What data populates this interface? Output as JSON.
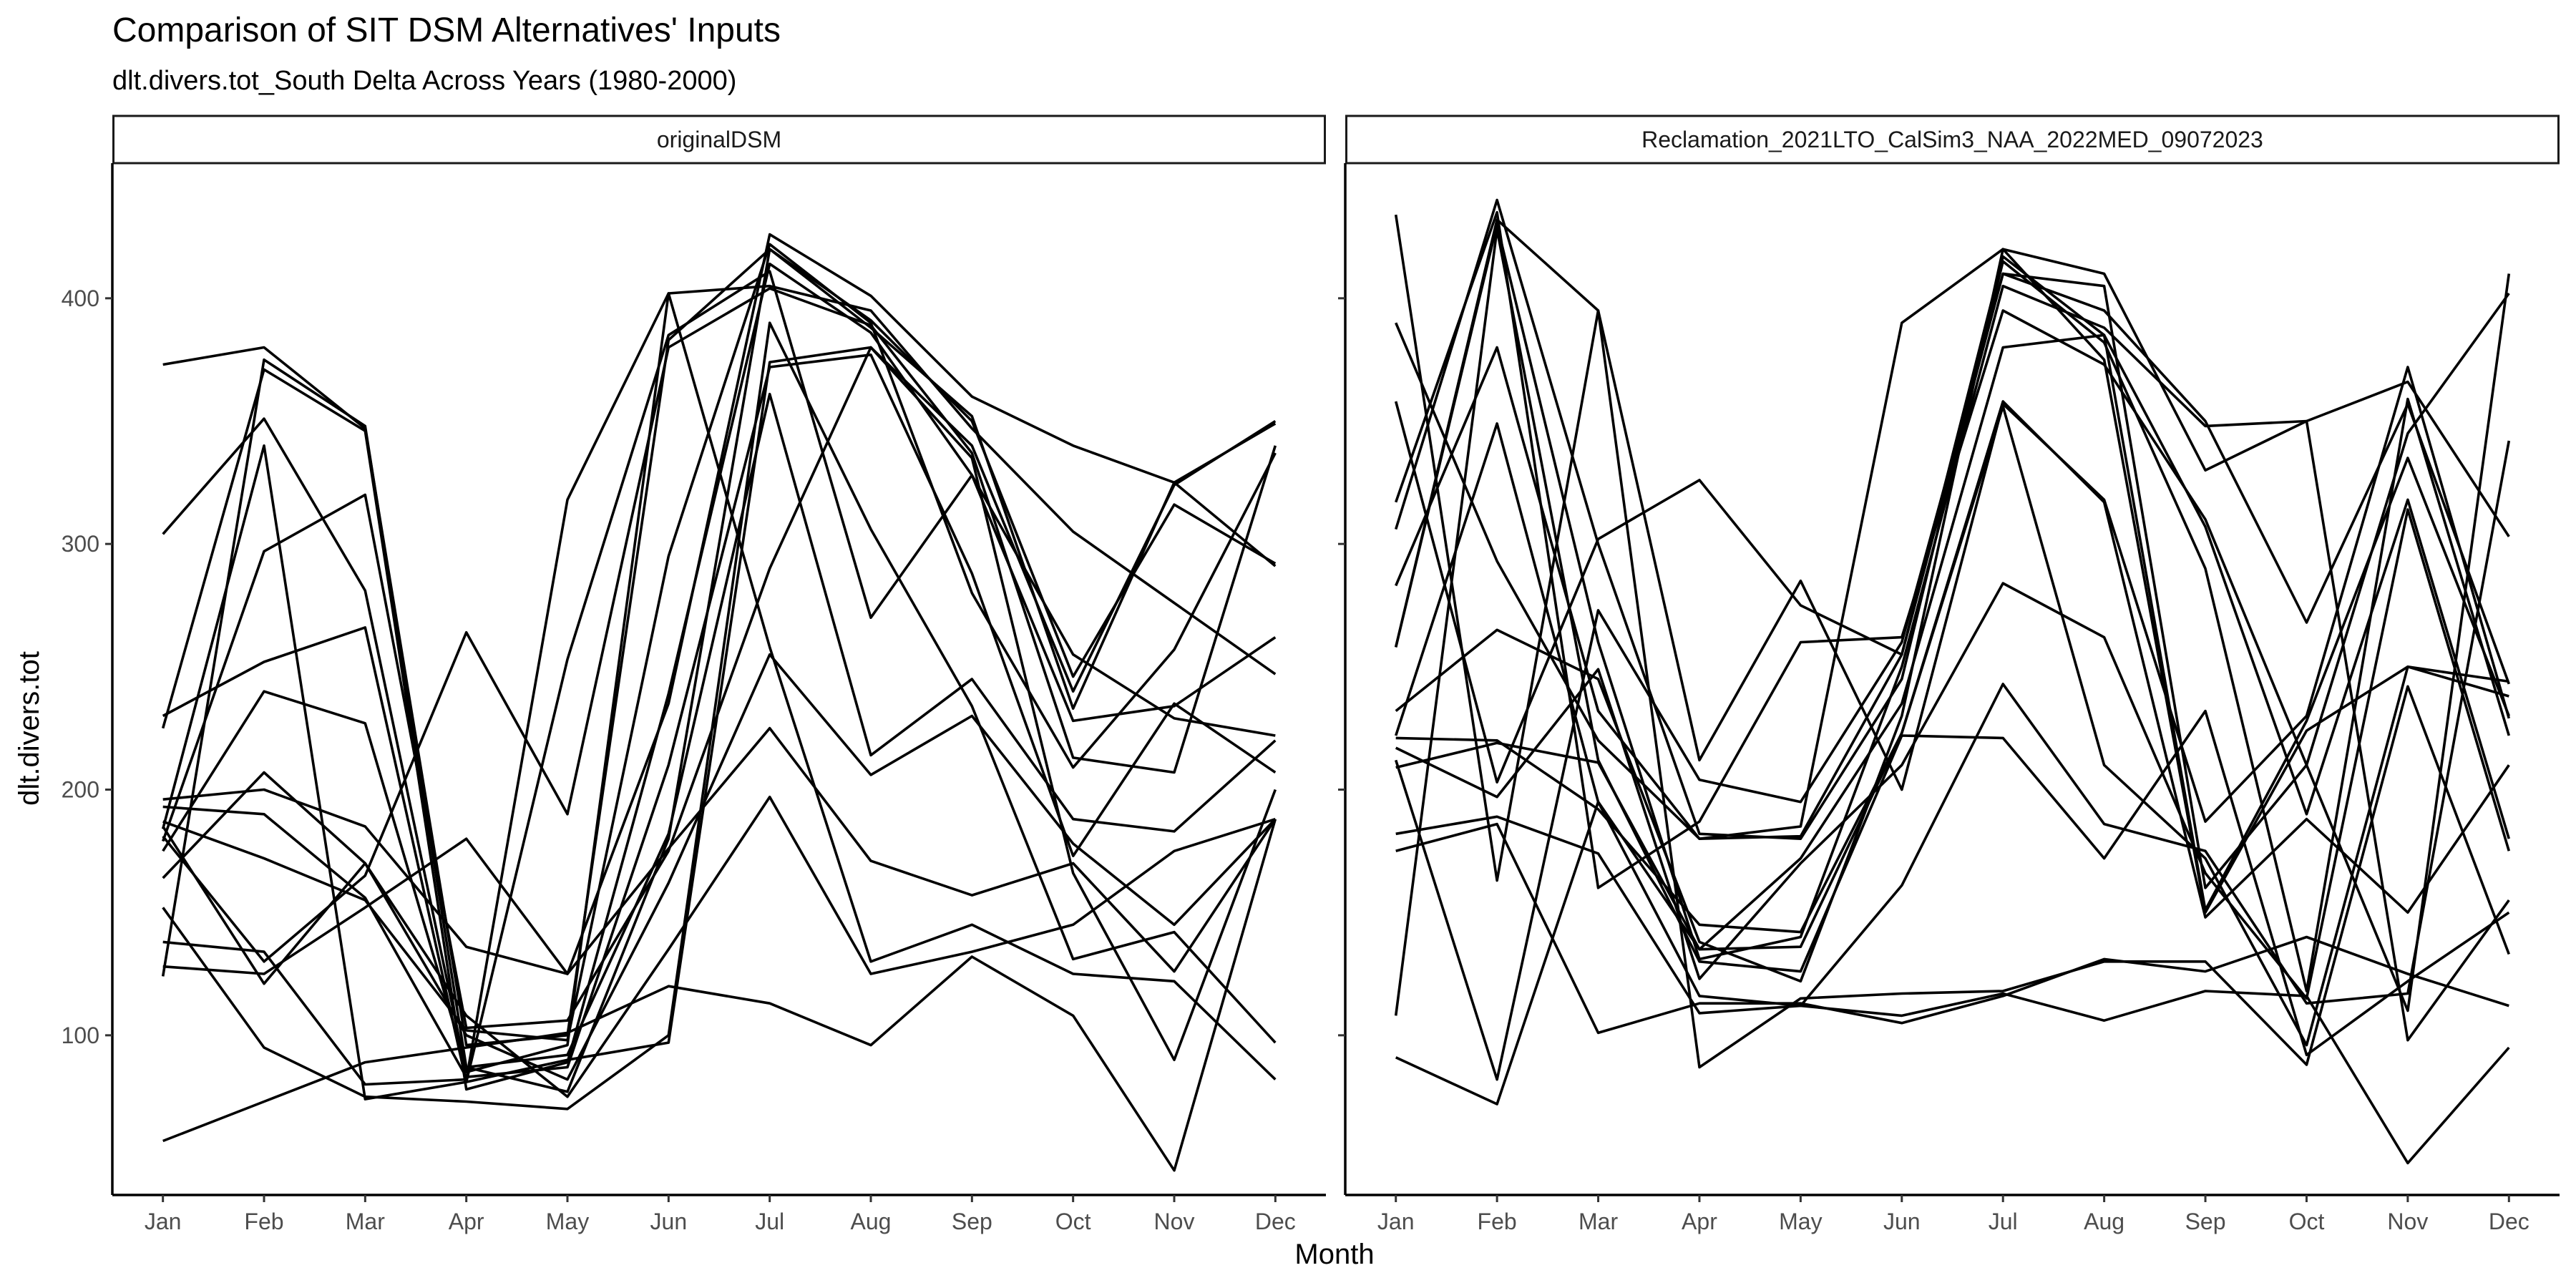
{
  "chart_data": {
    "type": "line",
    "title": "Comparison of SIT DSM Alternatives' Inputs",
    "subtitle": "dlt.divers.tot_South Delta Across Years (1980-2000)",
    "xlabel": "Month",
    "ylabel": "dlt.divers.tot",
    "categories": [
      "Jan",
      "Feb",
      "Mar",
      "Apr",
      "May",
      "Jun",
      "Jul",
      "Aug",
      "Sep",
      "Oct",
      "Nov",
      "Dec"
    ],
    "ylim": [
      35,
      455
    ],
    "yticks": [
      100,
      200,
      300,
      400
    ],
    "grid": false,
    "panels": [
      {
        "strip": "originalDSM",
        "series": [
          {
            "values": [
              373,
              380,
              347,
              96,
              100,
              383,
              420,
              388,
              352,
              233,
              325,
              349
            ]
          },
          {
            "values": [
              304,
              351,
              281,
              85,
              96,
              402,
              405,
              395,
              347,
              305,
              276,
              247
            ]
          },
          {
            "values": [
              230,
              252,
              266,
              81,
              90,
              97,
              374,
              380,
              340,
              240,
              324,
              350
            ]
          },
          {
            "values": [
              225,
              371,
              346,
              78,
              89,
              239,
              414,
              386,
              328,
              255,
              229,
              222
            ]
          },
          {
            "values": [
              196,
              200,
              185,
              136,
              125,
              235,
              426,
              401,
              360,
              340,
              325,
              291
            ]
          },
          {
            "values": [
              187,
              172,
              155,
              102,
              98,
              295,
              422,
              390,
              280,
              209,
              257,
              337
            ]
          },
          {
            "values": [
              184,
              340,
              74,
              81,
              253,
              385,
              411,
              270,
              328,
              228,
              234,
              262
            ]
          },
          {
            "values": [
              193,
              190,
              156,
              83,
              87,
              210,
              372,
              377,
              288,
              173,
              235,
              207
            ]
          },
          {
            "values": [
              181,
              130,
              165,
              264,
              190,
              380,
              404,
              389,
              337,
              213,
              207,
              340
            ]
          },
          {
            "values": [
              179,
              297,
              320,
              103,
              106,
              175,
              290,
              380,
              335,
              166,
              90,
              200
            ]
          },
          {
            "values": [
              175,
              240,
              227,
              87,
              92,
              182,
              361,
              214,
              245,
              188,
              183,
              220
            ]
          },
          {
            "values": [
              164,
              207,
              170,
              100,
              82,
              162,
              255,
              206,
              230,
              178,
              145,
              188
            ]
          },
          {
            "values": [
              152,
              95,
              75,
              73,
              70,
              100,
              390,
              306,
              234,
              131,
              142,
              97
            ]
          },
          {
            "values": [
              138,
              134,
              80,
              82,
              318,
              402,
              258,
              130,
              145,
              125,
              122,
              82
            ]
          },
          {
            "values": [
              128,
              125,
              152,
              180,
              125,
              176,
              225,
              171,
              157,
              170,
              126,
              188
            ]
          },
          {
            "values": [
              185,
              121,
              170,
              108,
              75,
              135,
              197,
              125,
              134,
              145,
              175,
              188
            ]
          },
          {
            "values": [
              57,
              73,
              89,
              95,
              101,
              120,
              113,
              96,
              132,
              108,
              45,
              188
            ]
          },
          {
            "values": [
              124,
              375,
              348,
              87,
              77,
              180,
              420,
              391,
              350,
              246,
              316,
              292
            ]
          }
        ]
      },
      {
        "strip": "Reclamation_2021LTO_CalSim3_NAA_2022MED_09072023",
        "series": [
          {
            "values": [
              434,
              163,
              395,
              212,
              285,
              200,
              357,
              318,
              187,
              230,
              372,
              229
            ]
          },
          {
            "values": [
              390,
              293,
              220,
              180,
              185,
              390,
              420,
              410,
              330,
              350,
              366,
              303
            ]
          },
          {
            "values": [
              358,
              203,
              302,
              326,
              275,
              255,
              410,
              395,
              350,
              268,
              357,
              243
            ]
          },
          {
            "values": [
              317,
              435,
              160,
              187,
              260,
              262,
              395,
              373,
              310,
              210,
              345,
              402
            ]
          },
          {
            "values": [
              306,
              440,
              300,
              182,
              180,
              245,
              415,
              382,
              290,
              118,
              359,
              222
            ]
          },
          {
            "values": [
              283,
              380,
              232,
              180,
              181,
              255,
              417,
              385,
              307,
              190,
              318,
              180
            ]
          },
          {
            "values": [
              258,
              430,
              260,
              131,
              140,
              250,
              405,
              388,
              348,
              350,
              98,
              155
            ]
          },
          {
            "values": [
              232,
              265,
              245,
              138,
              122,
              230,
              420,
              375,
              150,
              224,
              250,
              238
            ]
          },
          {
            "values": [
              222,
              349,
              195,
              135,
              172,
              235,
              380,
              385,
              151,
              228,
              335,
              230
            ]
          },
          {
            "values": [
              221,
              220,
              192,
              145,
              142,
              223,
              358,
              317,
              148,
              188,
              150,
              210
            ]
          },
          {
            "values": [
              217,
              197,
              249,
              123,
              170,
              210,
              284,
              262,
              166,
              115,
              314,
              175
            ]
          },
          {
            "values": [
              209,
              219,
              211,
              135,
              136,
              223,
              356,
              210,
              172,
              96,
              250,
              244
            ]
          },
          {
            "values": [
              182,
              189,
              174,
              109,
              112,
              161,
              243,
              186,
              175,
              113,
              117,
              342
            ]
          },
          {
            "values": [
              108,
              428,
              212,
              130,
              126,
              222,
              221,
              172,
              232,
              92,
              122,
              150
            ]
          },
          {
            "values": [
              175,
              186,
              101,
              113,
              113,
              105,
              116,
              131,
              126,
              140,
              125,
              112
            ]
          },
          {
            "values": [
              91,
              72,
              195,
              116,
              112,
              108,
              117,
              106,
              118,
              116,
              48,
              95
            ]
          },
          {
            "values": [
              258,
              432,
              395,
              87,
              115,
              117,
              118,
              130,
              130,
              88,
              242,
              133
            ]
          },
          {
            "values": [
              212,
              82,
              273,
              204,
              195,
              260,
              410,
              405,
              160,
              210,
              110,
              410
            ]
          }
        ]
      }
    ]
  }
}
